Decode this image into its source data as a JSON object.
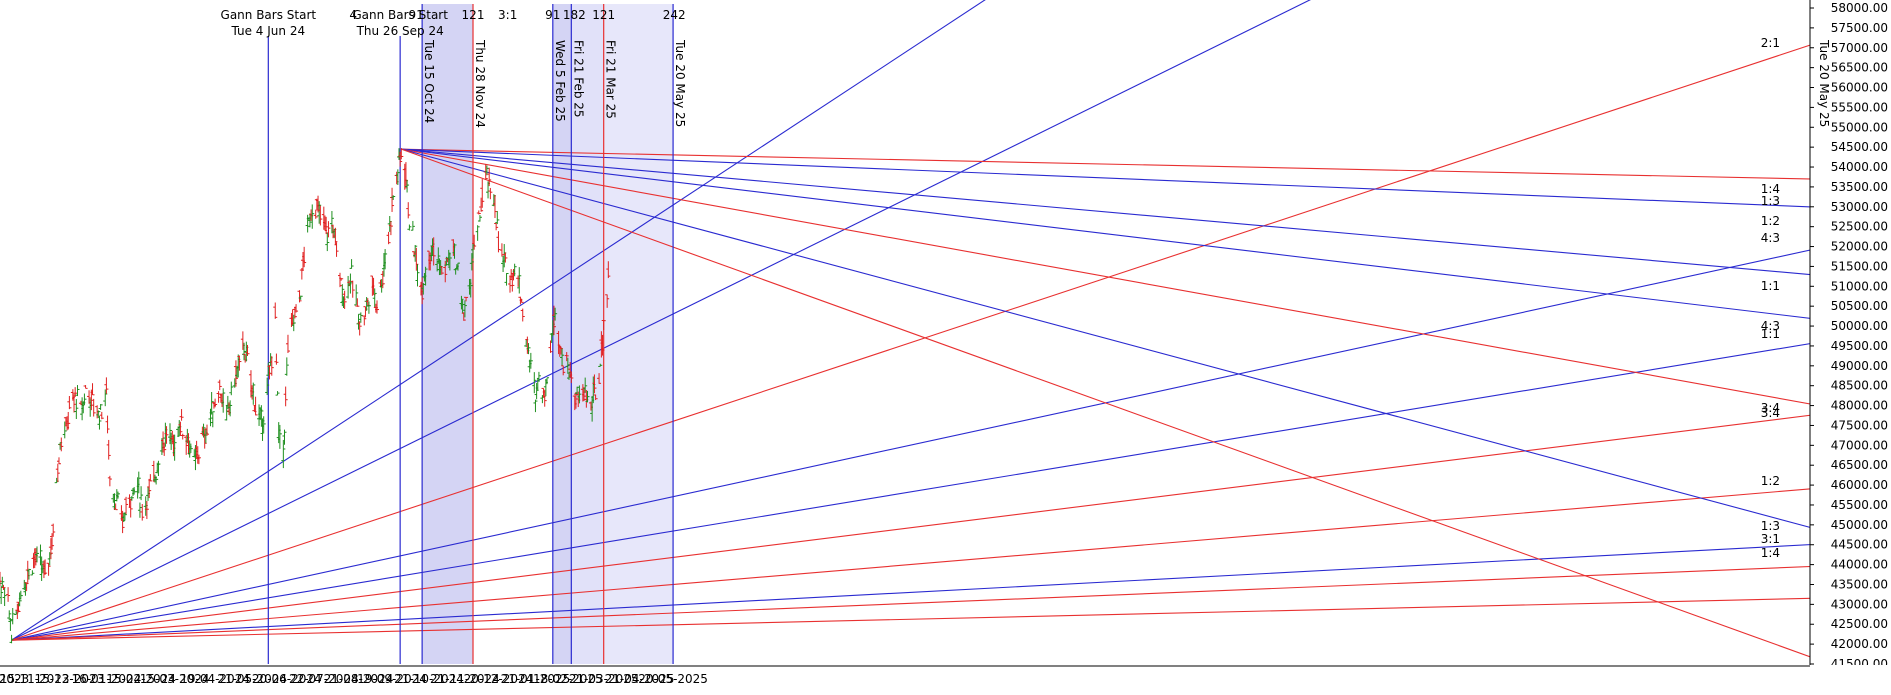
{
  "chart_data": {
    "type": "ohlc",
    "title": "",
    "xlabel": "",
    "ylabel": "",
    "ylim": [
      41500,
      58000
    ],
    "y_ticks": [
      "41500.00",
      "42000.00",
      "42500.00",
      "43000.00",
      "43500.00",
      "44000.00",
      "44500.00",
      "45000.00",
      "45500.00",
      "46000.00",
      "46500.00",
      "47000.00",
      "47500.00",
      "48000.00",
      "48500.00",
      "49000.00",
      "49500.00",
      "50000.00",
      "50500.00",
      "51000.00",
      "51500.00",
      "52000.00",
      "52500.00",
      "53000.00",
      "53500.00",
      "54000.00",
      "54500.00",
      "55000.00",
      "55500.00",
      "56000.00",
      "56500.00",
      "57000.00",
      "57500.00",
      "58000.00"
    ],
    "x_ticks": [
      "2023",
      "15-11-2023",
      "15-12-2023",
      "16-01-2024",
      "15-02-2024",
      "15-03-2024",
      "19-04-2024",
      "21-05-2024",
      "20-06-2024",
      "22-07-2024",
      "21-08-2024",
      "19-09-2024",
      "21-10-2024",
      "21-11-2024",
      "20-12-2024",
      "21-01-2025",
      "18-02-2025",
      "21-03-2025",
      "21-04-2025",
      "20-05-2025"
    ],
    "gann_bar_labels": [
      {
        "title": "Gann Bars Start",
        "date": "Tue 4 Jun 24"
      },
      {
        "title": "Gann Bars Start",
        "date": "Thu 26 Sep 24"
      }
    ],
    "vertical_markers": [
      {
        "date": "Tue 4 Jun 24",
        "color": "#2a2ad0"
      },
      {
        "date": "Thu 26 Sep 24",
        "color": "#2a2ad0"
      },
      {
        "date": "Tue 15 Oct 24",
        "color": "#2a2ad0"
      },
      {
        "date": "Thu 28 Nov 24",
        "color": "#e83030"
      },
      {
        "date": "Wed 5 Feb 25",
        "color": "#2a2ad0"
      },
      {
        "date": "Fri 21 Feb 25",
        "color": "#2a2ad0"
      },
      {
        "date": "Fri 21 Mar 25",
        "color": "#e83030"
      },
      {
        "date": "Tue 20 May 25",
        "color": "#2a2ad0"
      }
    ],
    "top_counts": [
      "4",
      "91",
      "121",
      "3:1",
      "91",
      "182",
      "121",
      "242"
    ],
    "fan_ratio_labels_right": [
      "2:1",
      "1:4",
      "1:3",
      "1:2",
      "4:3",
      "1:1",
      "4:3",
      "1:1",
      "3:4",
      "3:4",
      "1:2",
      "1:3",
      "3:1",
      "1:4"
    ],
    "fans": [
      {
        "origin": [
          "2023-10-26",
          42100
        ],
        "color_cycle": [
          "#2a2ad0",
          "#e83030"
        ]
      },
      {
        "origin": [
          "2024-09-27",
          54450
        ],
        "color_cycle": [
          "#e83030",
          "#2a2ad0"
        ]
      }
    ],
    "series": [
      {
        "ohlc_points": [
          [
            "2023-10-02",
            44800
          ],
          [
            "2023-10-06",
            44400
          ],
          [
            "2023-10-12",
            44000
          ],
          [
            "2023-10-18",
            43400
          ],
          [
            "2023-10-24",
            42800
          ],
          [
            "2023-10-26",
            42300
          ],
          [
            "2023-10-30",
            42800
          ],
          [
            "2023-11-03",
            43300
          ],
          [
            "2023-11-09",
            43800
          ],
          [
            "2023-11-15",
            44200
          ],
          [
            "2023-11-20",
            44000
          ],
          [
            "2023-11-24",
            43700
          ],
          [
            "2023-11-28",
            44300
          ],
          [
            "2023-12-01",
            44800
          ],
          [
            "2023-12-04",
            46200
          ],
          [
            "2023-12-07",
            47100
          ],
          [
            "2023-12-12",
            47400
          ],
          [
            "2023-12-15",
            47900
          ],
          [
            "2023-12-20",
            48200
          ],
          [
            "2023-12-26",
            47900
          ],
          [
            "2023-12-29",
            48400
          ],
          [
            "2024-01-04",
            48100
          ],
          [
            "2024-01-10",
            47800
          ],
          [
            "2024-01-16",
            48300
          ],
          [
            "2024-01-19",
            46200
          ],
          [
            "2024-01-24",
            45600
          ],
          [
            "2024-01-30",
            45100
          ],
          [
            "2024-02-05",
            45700
          ],
          [
            "2024-02-12",
            46000
          ],
          [
            "2024-02-16",
            45400
          ],
          [
            "2024-02-22",
            45800
          ],
          [
            "2024-02-28",
            46400
          ],
          [
            "2024-03-04",
            47000
          ],
          [
            "2024-03-08",
            47300
          ],
          [
            "2024-03-14",
            47000
          ],
          [
            "2024-03-20",
            47600
          ],
          [
            "2024-03-26",
            47200
          ],
          [
            "2024-04-01",
            46500
          ],
          [
            "2024-04-05",
            46900
          ],
          [
            "2024-04-12",
            47400
          ],
          [
            "2024-04-18",
            48000
          ],
          [
            "2024-04-23",
            48500
          ],
          [
            "2024-04-29",
            47600
          ],
          [
            "2024-05-03",
            48300
          ],
          [
            "2024-05-09",
            49000
          ],
          [
            "2024-05-14",
            49500
          ],
          [
            "2024-05-20",
            48600
          ],
          [
            "2024-05-24",
            48000
          ],
          [
            "2024-05-29",
            47500
          ],
          [
            "2024-06-03",
            48300
          ],
          [
            "2024-06-07",
            49300
          ],
          [
            "2024-06-10",
            50200
          ],
          [
            "2024-06-13",
            47200
          ],
          [
            "2024-06-17",
            46800
          ],
          [
            "2024-06-21",
            49500
          ],
          [
            "2024-06-26",
            50200
          ],
          [
            "2024-07-01",
            50700
          ],
          [
            "2024-07-05",
            51800
          ],
          [
            "2024-07-10",
            52800
          ],
          [
            "2024-07-15",
            53000
          ],
          [
            "2024-07-20",
            52700
          ],
          [
            "2024-07-25",
            52300
          ],
          [
            "2024-07-30",
            52600
          ],
          [
            "2024-08-05",
            51200
          ],
          [
            "2024-08-09",
            50700
          ],
          [
            "2024-08-14",
            51300
          ],
          [
            "2024-08-19",
            50600
          ],
          [
            "2024-08-23",
            50100
          ],
          [
            "2024-08-28",
            50500
          ],
          [
            "2024-09-02",
            51000
          ],
          [
            "2024-09-06",
            50600
          ],
          [
            "2024-09-11",
            51300
          ],
          [
            "2024-09-16",
            52300
          ],
          [
            "2024-09-20",
            53300
          ],
          [
            "2024-09-24",
            53900
          ],
          [
            "2024-09-27",
            54400
          ],
          [
            "2024-10-01",
            53800
          ],
          [
            "2024-10-04",
            52700
          ],
          [
            "2024-10-09",
            51800
          ],
          [
            "2024-10-14",
            50900
          ],
          [
            "2024-10-18",
            51500
          ],
          [
            "2024-10-23",
            52000
          ],
          [
            "2024-10-28",
            51700
          ],
          [
            "2024-11-01",
            51300
          ],
          [
            "2024-11-06",
            51600
          ],
          [
            "2024-11-11",
            51900
          ],
          [
            "2024-11-15",
            51300
          ],
          [
            "2024-11-20",
            50300
          ],
          [
            "2024-11-25",
            50900
          ],
          [
            "2024-11-28",
            51900
          ],
          [
            "2024-12-02",
            52300
          ],
          [
            "2024-12-06",
            53300
          ],
          [
            "2024-12-10",
            53700
          ],
          [
            "2024-12-13",
            53400
          ],
          [
            "2024-12-17",
            53100
          ],
          [
            "2024-12-20",
            52100
          ],
          [
            "2024-12-24",
            51600
          ],
          [
            "2024-12-30",
            51200
          ],
          [
            "2025-01-03",
            51500
          ],
          [
            "2025-01-08",
            50900
          ],
          [
            "2025-01-13",
            49700
          ],
          [
            "2025-01-17",
            48900
          ],
          [
            "2025-01-21",
            48300
          ],
          [
            "2025-01-24",
            48800
          ],
          [
            "2025-01-28",
            48200
          ],
          [
            "2025-02-01",
            49000
          ],
          [
            "2025-02-05",
            49900
          ],
          [
            "2025-02-07",
            50500
          ],
          [
            "2025-02-11",
            49600
          ],
          [
            "2025-02-14",
            49100
          ],
          [
            "2025-02-19",
            48900
          ],
          [
            "2025-02-24",
            48300
          ],
          [
            "2025-02-28",
            48100
          ],
          [
            "2025-03-05",
            48400
          ],
          [
            "2025-03-10",
            47900
          ],
          [
            "2025-03-13",
            48300
          ],
          [
            "2025-03-17",
            48700
          ],
          [
            "2025-03-20",
            49700
          ],
          [
            "2025-03-24",
            50900
          ],
          [
            "2025-03-26",
            51600
          ]
        ]
      }
    ]
  }
}
